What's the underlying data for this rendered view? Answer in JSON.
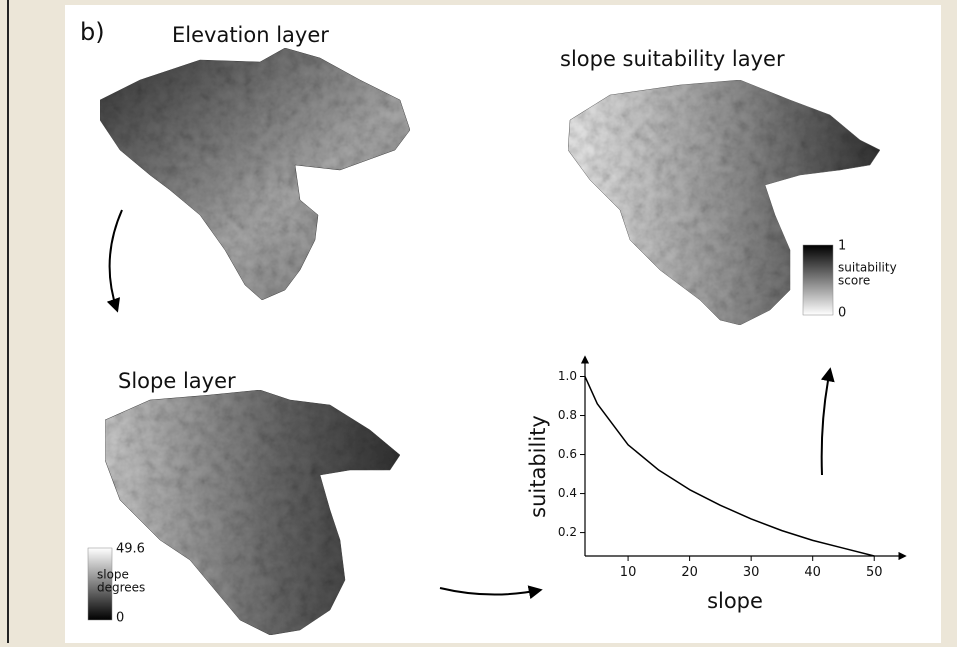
{
  "panel_label": "b)",
  "elevation_layer": {
    "title": "Elevation layer"
  },
  "suitability_layer": {
    "title": "slope suitability layer",
    "legend": {
      "max": 1,
      "label": [
        "suitability",
        "score"
      ],
      "min": 0
    }
  },
  "slope_layer": {
    "title": "Slope layer",
    "legend": {
      "max": 49.6,
      "label": [
        "slope",
        "degrees"
      ],
      "min": 0
    }
  },
  "plot": {
    "x_label": "slope",
    "y_label": "suitability",
    "xlim": [
      3,
      55
    ],
    "ylim": [
      0.08,
      1.1
    ],
    "xticks": [
      10,
      20,
      30,
      40,
      50
    ],
    "yticks": [
      0.2,
      0.4,
      0.6,
      0.8,
      {
        "value": 1,
        "label": "1.0"
      }
    ],
    "curve": {
      "x": [
        3,
        5,
        10,
        15,
        20,
        25,
        30,
        35,
        40,
        45,
        50
      ],
      "y": [
        1.0,
        0.86,
        0.65,
        0.52,
        0.42,
        0.34,
        0.27,
        0.21,
        0.16,
        0.12,
        0.08
      ]
    }
  }
}
